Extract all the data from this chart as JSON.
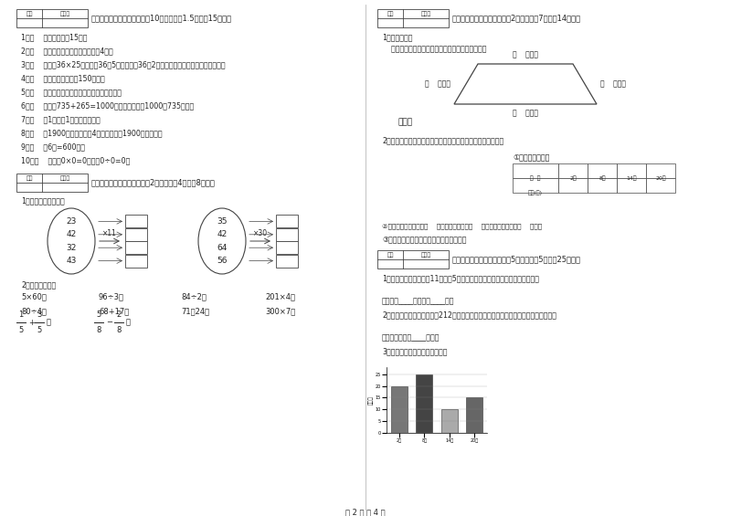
{
  "page_title": "第 2 页 共 4 页",
  "bg_color": "#ffffff",
  "text_color": "#222222",
  "border_color": "#444444",
  "sec3_title": "三、仔细推敫，正确判断（入10小题，每题1.5分，入15分）。",
  "sec3_items": [
    "1．（    ）李老师身高15米。",
    "2．（    ）正方形的周长是它的边长的4倍。",
    "3．（    ）计算36×25时，先抄36和5相乘，再抄36和2相乘，最后把两次乘积的结果相加。",
    "4．（    ）一本故事书约重150千克。",
    "5．（    ）长方形的周长就是它四条边长度的和。",
    "6．（    ）根据735+265=1000，可以直接写出1000－735的差。",
    "7．（    ）1吞铁与1吞棉花一样重。",
    "8．（    ）1900年的年份数是4的倍数，所以1900年是闰年。",
    "9．（    ）6分=600秒。",
    "10．（    ）因为0×0=0，所以0÷0=0。"
  ],
  "sec4_title": "四、看清题目，细心计算（共2小题，每题4分，共8分）。",
  "sec4_sub1": "1．算一算，填一填。",
  "oval_left_nums": [
    "23",
    "42",
    "32",
    "43"
  ],
  "oval_left_op": "×11",
  "oval_right_nums": [
    "35",
    "42",
    "64",
    "56"
  ],
  "oval_right_op": "×30",
  "sec4_sub2": "2．直接写得数。",
  "calc_row1": [
    "5×60＝",
    "96÷3＝",
    "84÷2＝",
    "201×4＝"
  ],
  "calc_row2": [
    "80÷4＝",
    "68+17＝",
    "71－24＝",
    "300×7＝"
  ],
  "calc_frac1_num": "1",
  "calc_frac1_den": "5",
  "calc_frac2_num": "3",
  "calc_frac2_den": "5",
  "calc_frac3_num": "5",
  "calc_frac3_den": "8",
  "calc_frac4_num": "2",
  "calc_frac4_den": "8",
  "sec5_title": "五、认真思考，综合能力（共2小题，每题7分，入14分）。",
  "sec5_q1a": "1．动手操作。",
  "sec5_q1b": "    量出每条边的长度，以毫米为单位，并计算周长。",
  "trap_top": "（    ）毫米",
  "trap_left": "（    ）毫米",
  "trap_right": "（    ）毫米",
  "trap_bottom": "（    ）毫米",
  "perimeter_label": "周长：",
  "sec5_q2": "2．下面是气温自测仪上记录的某天四个不同时间的气温情况：",
  "chart_title": "①根据统计图填表",
  "chart_ylabel": "（度）",
  "chart_bars": [
    20,
    25,
    10,
    15
  ],
  "chart_colors": [
    "#777777",
    "#444444",
    "#aaaaaa",
    "#666666"
  ],
  "chart_xticks": [
    "2时",
    "8时",
    "14时",
    "20时"
  ],
  "chart_yticks": [
    0,
    5,
    10,
    15,
    20,
    25
  ],
  "table_header": [
    "时  间",
    "2时",
    "8时",
    "14时",
    "20时"
  ],
  "table_row_label": "气温(度)",
  "q2_sub1": "②这一天的最高气温是（    ）度，最低气温是（    ）度，平均气温大约（    ）度。",
  "q2_sub2": "③实际算一算，这天的平均气温是多少度？",
  "sec6_title": "六、活用知识，解决问题（共5小题，每题5分，入25分）。",
  "sec6_p1": "1．姐姐买来一束花，有11枝，每5枝插入一个花瓶里，可插几瓶？还剩几枝？",
  "sec6_a1": "答：可插____瓶，还剩____枝。",
  "sec6_p2": "2．用一根铁丝绕一个边长为212厘米的正方形框架，正好用完，这根铁丝长多少厘米？",
  "sec6_a2": "答：这根铁丝长____厘米。",
  "sec6_p3": "3．根据图片中的内容回答问题。"
}
